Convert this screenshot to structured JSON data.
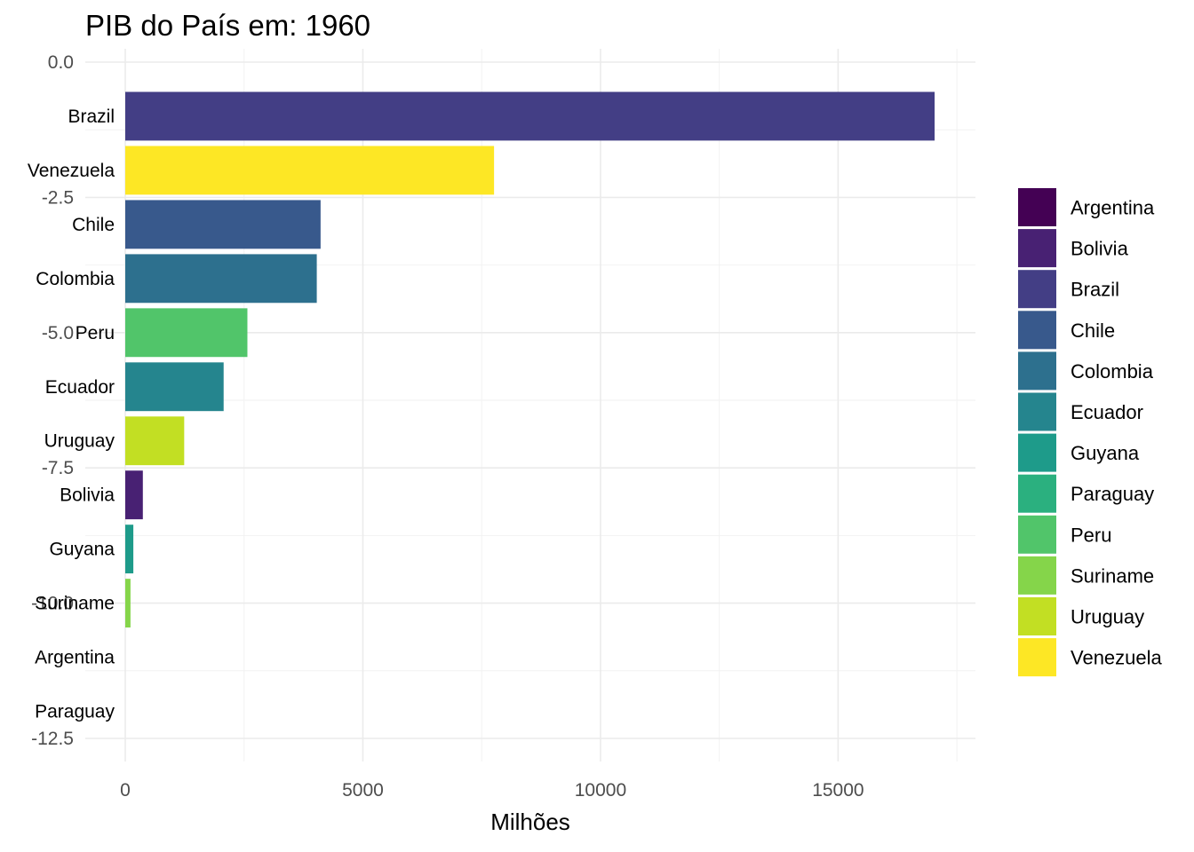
{
  "chart_data": {
    "type": "bar",
    "orientation": "horizontal",
    "title": "PIB do País em: 1960",
    "xlabel": "Milhões",
    "ylabel": "",
    "xlim": [
      0,
      17500
    ],
    "x_ticks": [
      0,
      5000,
      10000,
      15000
    ],
    "y_ticks": [
      "0.0",
      "-2.5",
      "-5.0",
      "-7.5",
      "-10.0",
      "-12.5"
    ],
    "y_tick_values": [
      0,
      -2.5,
      -5,
      -7.5,
      -10,
      -12.5
    ],
    "ylim": [
      -13,
      0
    ],
    "grid": true,
    "legend_position": "right",
    "categories": [
      "Brazil",
      "Venezuela",
      "Chile",
      "Colombia",
      "Peru",
      "Ecuador",
      "Uruguay",
      "Bolivia",
      "Guyana",
      "Suriname",
      "Argentina",
      "Paraguay"
    ],
    "rank": [
      -1,
      -2,
      -3,
      -4,
      -5,
      -6,
      -7,
      -8,
      -9,
      -10,
      -11,
      -12
    ],
    "values": [
      17030,
      7760,
      4110,
      4030,
      2570,
      2070,
      1240,
      370,
      170,
      110,
      0,
      0
    ],
    "colors": {
      "Argentina": "#440154",
      "Bolivia": "#482173",
      "Brazil": "#433E85",
      "Chile": "#38598C",
      "Colombia": "#2D708E",
      "Ecuador": "#25858E",
      "Guyana": "#1E9B8A",
      "Paraguay": "#2BB07F",
      "Peru": "#51C56A",
      "Suriname": "#85D54A",
      "Uruguay": "#C2DF23",
      "Venezuela": "#FDE725"
    },
    "legend": [
      "Argentina",
      "Bolivia",
      "Brazil",
      "Chile",
      "Colombia",
      "Ecuador",
      "Guyana",
      "Paraguay",
      "Peru",
      "Suriname",
      "Uruguay",
      "Venezuela"
    ]
  }
}
